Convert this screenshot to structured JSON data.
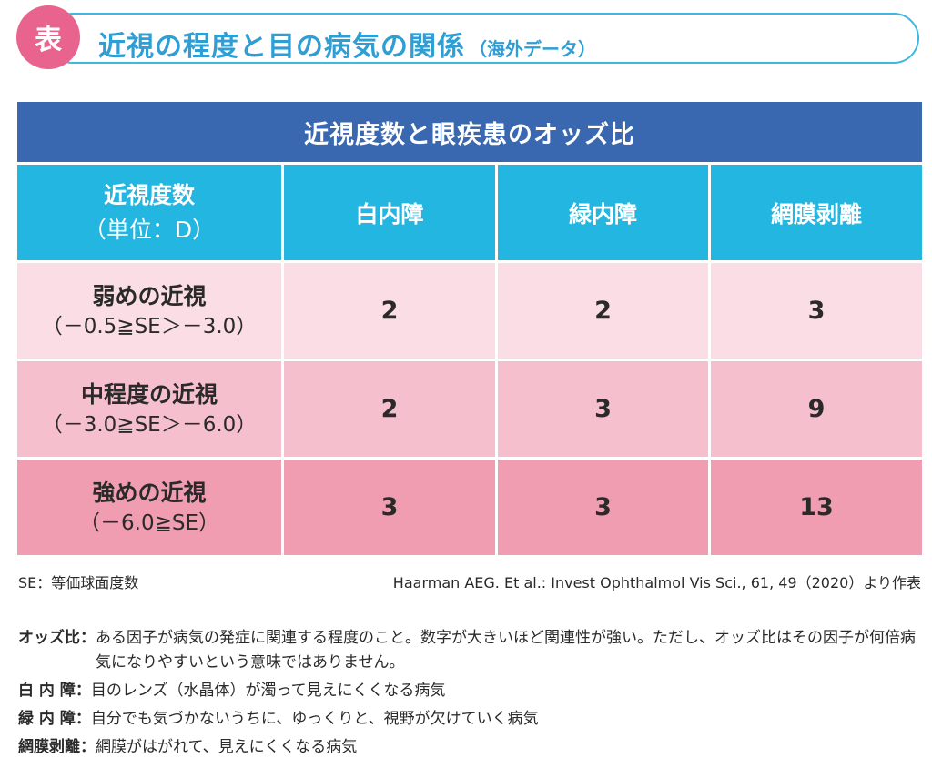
{
  "title": {
    "badge": "表",
    "main": "近視の程度と目の病気の関係",
    "sub": "（海外データ）"
  },
  "table": {
    "caption": "近視度数と眼疾患のオッズ比",
    "header": {
      "first_main": "近視度数",
      "first_sub": "（単位：D）",
      "columns": [
        "白内障",
        "緑内障",
        "網膜剥離"
      ]
    },
    "rows": [
      {
        "name": "弱めの近視",
        "range": "（－0.5≧SE＞－3.0）",
        "values": [
          "2",
          "2",
          "3"
        ]
      },
      {
        "name": "中程度の近視",
        "range": "（－3.0≧SE＞－6.0）",
        "values": [
          "2",
          "3",
          "9"
        ]
      },
      {
        "name": "強めの近視",
        "range": "（－6.0≧SE）",
        "values": [
          "3",
          "3",
          "13"
        ]
      }
    ]
  },
  "notes": {
    "left": "SE：等価球面度数",
    "right": "Haarman AEG. Et al.: Invest Ophthalmol Vis Sci., 61, 49（2020）より作表"
  },
  "definitions": [
    {
      "term": "オッズ比：",
      "desc": "ある因子が病気の発症に関連する程度のこと。数字が大きいほど関連性が強い。ただし、オッズ比はその因子が何倍病気になりやすいという意味ではありません。"
    },
    {
      "term": "白 内 障：",
      "desc": "目のレンズ（水晶体）が濁って見えにくくなる病気"
    },
    {
      "term": "緑 内 障：",
      "desc": "自分でも気づかないうちに、ゆっくりと、視野が欠けていく病気"
    },
    {
      "term": "網膜剥離：",
      "desc": "網膜がはがれて、見えにくくなる病気"
    }
  ],
  "colors": {
    "badge": "#e8638d",
    "title": "#2f9ed4",
    "caption_bg": "#3a68b0",
    "header_bg": "#22b6e0",
    "row_light": "#fbdde5",
    "row_mid": "#f6bfcd",
    "row_dark": "#f09db1"
  }
}
